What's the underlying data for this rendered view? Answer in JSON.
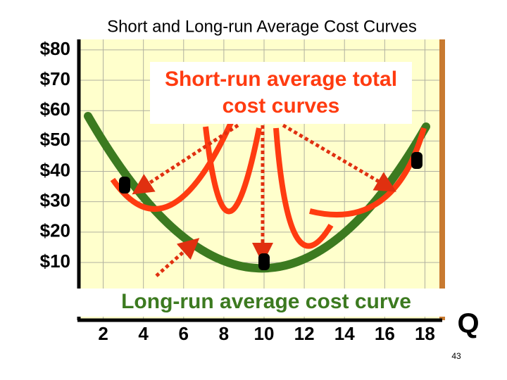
{
  "chart_data": {
    "type": "line",
    "title": "Short and Long-run Average Cost Curves",
    "annotations": [
      "Short-run average total cost curves",
      "Long-run average cost curve"
    ],
    "x_label": "Q",
    "slide_number": "43",
    "xlim": [
      1,
      19
    ],
    "xticks": [
      2,
      4,
      6,
      8,
      10,
      12,
      14,
      16,
      18
    ],
    "ylim": [
      -9,
      86
    ],
    "yticks": [
      {
        "value": 80,
        "label": "$80"
      },
      {
        "value": 70,
        "label": "$70"
      },
      {
        "value": 60,
        "label": "$60"
      },
      {
        "value": 50,
        "label": "$50"
      },
      {
        "value": 40,
        "label": "$40"
      },
      {
        "value": 30,
        "label": "$30"
      },
      {
        "value": 20,
        "label": "$20"
      },
      {
        "value": 10,
        "label": "$10"
      }
    ],
    "grid": true
  }
}
